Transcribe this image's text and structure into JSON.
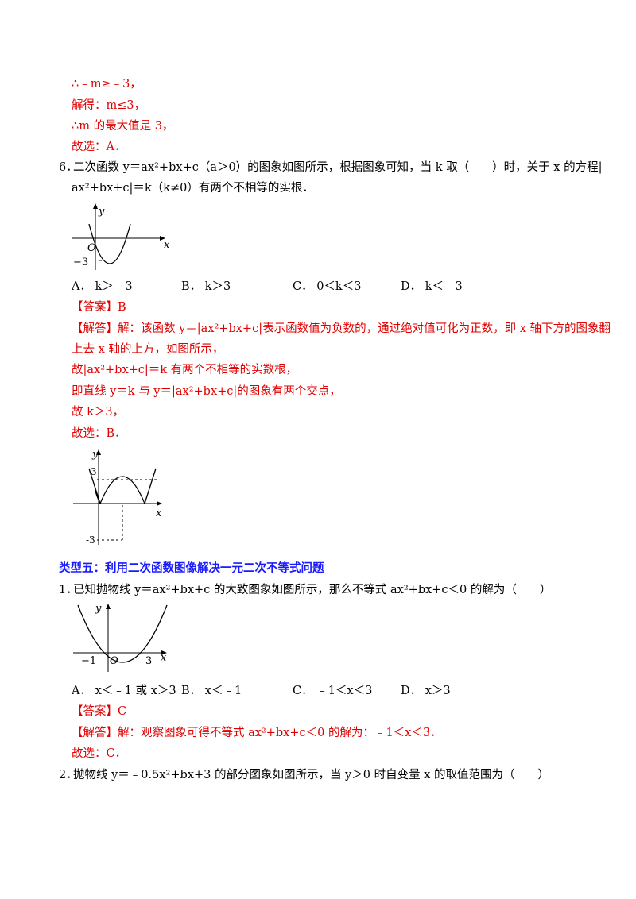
{
  "prev_solution": {
    "l1": "∴﹣m≥﹣3，",
    "l2": "解得：m≤3，",
    "l3": "∴m 的最大值是 3，",
    "l4": "故选：A．"
  },
  "q6": {
    "number": "6．",
    "stem_l1": "二次函数 y＝ax²+bx+c（a＞0）的图象如图所示，根据图象可知，当 k 取（　　）时，关于 x 的方程|",
    "stem_l2": "ax²+bx+c|＝k（k≠0）有两个不相等的实根．",
    "figure": {
      "y_label": "y",
      "x_label": "x",
      "origin": "O",
      "min_label": "−3"
    },
    "options": [
      "A．  k＞﹣3",
      "B．  k＞3",
      "C．  0＜k＜3",
      "D．  k＜﹣3"
    ],
    "answer": "【答案】B",
    "analysis_l1": "【解答】解：该函数 y＝|ax²+bx+c|表示函数值为负数的，通过绝对值可化为正数，即 x 轴下方的图象翻",
    "analysis_l2": "上去 x 轴的上方，如图所示，",
    "analysis_l3": "故|ax²+bx+c|＝k 有两个不相等的实数根，",
    "analysis_l4": "即直线 y＝k 与 y＝|ax²+bx+c|的图象有两个交点，",
    "analysis_l5": "故 k＞3，",
    "analysis_l6": "故选：B．",
    "figure2": {
      "y_label": "y",
      "x_label": "x",
      "top_label": "3",
      "bottom_label": "-3"
    }
  },
  "section": {
    "title": "类型五：利用二次函数图像解决一元二次不等式问题"
  },
  "q1": {
    "number": "1．",
    "stem": "已知抛物线 y＝ax²+bx+c 的大致图象如图所示，那么不等式 ax²+bx+c＜0 的解为（　　）",
    "figure": {
      "y_label": "y",
      "x_label": "x",
      "left_root": "−1",
      "origin": "O",
      "right_root": "3"
    },
    "options": [
      "A．  x＜﹣1 或 x＞3",
      "B．  x＜﹣1",
      "C．  ﹣1＜x＜3",
      "D．  x＞3"
    ],
    "answer": "【答案】C",
    "analysis": "【解答】解：观察图象可得不等式 ax²+bx+c＜0 的解为：﹣1＜x＜3．",
    "choose": "故选：C．"
  },
  "q2": {
    "number": "2．",
    "stem": "抛物线 y＝﹣0.5x²+bx+3 的部分图象如图所示，当 y＞0 时自变量 x 的取值范围为（　　）"
  }
}
